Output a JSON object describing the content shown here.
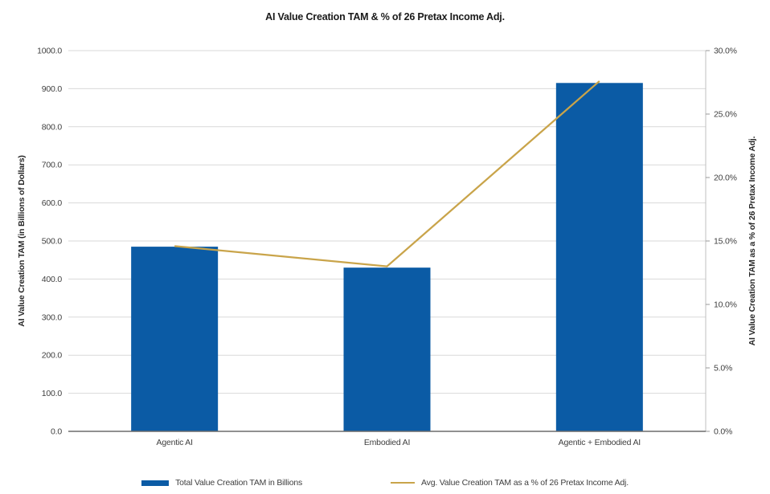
{
  "title": "AI Value Creation TAM & % of 26 Pretax Income Adj.",
  "chart_data": {
    "type": "bar+line combo",
    "categories": [
      "Agentic AI",
      "Embodied AI",
      "Agentic + Embodied AI"
    ],
    "series": [
      {
        "name": "Total Value Creation TAM in Billions",
        "type": "bar",
        "axis": "left",
        "color": "#0B5BA5",
        "values": [
          485,
          430,
          915
        ]
      },
      {
        "name": "Avg. Value Creation TAM as a % of 26 Pretax Income Adj.",
        "type": "line",
        "axis": "right",
        "color": "#C9A44A",
        "values": [
          14.6,
          13.0,
          27.6
        ]
      }
    ],
    "left_axis": {
      "label": "AI Value Creation TAM (in Billions of Dollars)",
      "min": 0,
      "max": 1000,
      "step": 100,
      "ticks": [
        "0.0",
        "100.0",
        "200.0",
        "300.0",
        "400.0",
        "500.0",
        "600.0",
        "700.0",
        "800.0",
        "900.0",
        "1000.0"
      ]
    },
    "right_axis": {
      "label": "AI Value Creation TAM as a % of 26 Pretax Income Adj.",
      "min": 0,
      "max": 30,
      "step": 5,
      "ticks": [
        "0.0%",
        "5.0%",
        "10.0%",
        "15.0%",
        "20.0%",
        "25.0%",
        "30.0%"
      ]
    },
    "grid": true,
    "legend_position": "bottom",
    "colors": {
      "gridline": "#D9D9D9",
      "x_axis_line": "#6B6B6B",
      "right_axis_line": "#BFBFBF",
      "tick_text": "#3F3F3F"
    }
  }
}
